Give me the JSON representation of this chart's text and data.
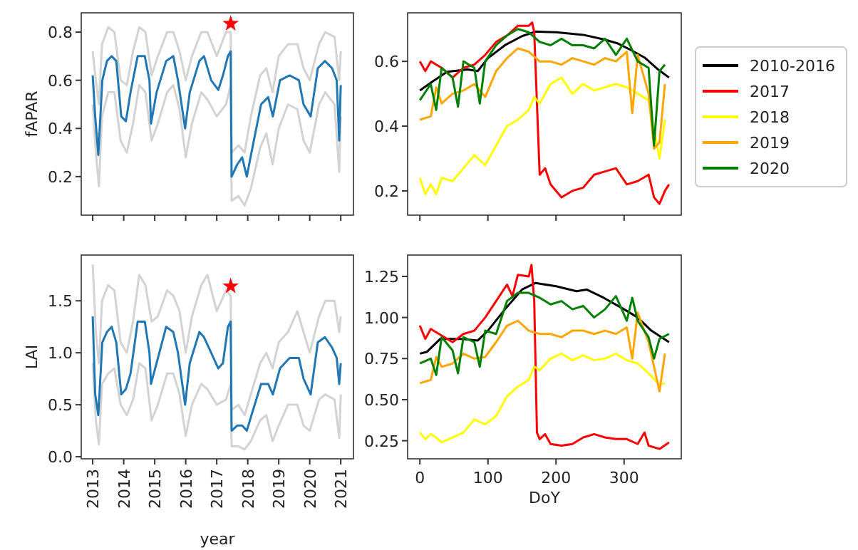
{
  "chart_data": [
    {
      "type": "line",
      "ylabel": "fAPAR",
      "xlim": [
        2012.63,
        2021.41
      ],
      "ylim": [
        0.04,
        0.88
      ],
      "xticks": [
        2013,
        2014,
        2015,
        2016,
        2017,
        2018,
        2019,
        2020,
        2021
      ],
      "yticks": [
        0.2,
        0.4,
        0.6,
        0.8
      ],
      "tick_labels": "y",
      "series": [
        {
          "color": "#d3d3d3",
          "x": [
            2013.0,
            2013.1,
            2013.2,
            2013.3,
            2013.5,
            2013.7,
            2013.9,
            2014.1,
            2014.3,
            2014.5,
            2014.7,
            2014.9,
            2015.1,
            2015.4,
            2015.6,
            2015.8,
            2016.0,
            2016.2,
            2016.5,
            2016.7,
            2017.0,
            2017.3,
            2017.45,
            2017.48,
            2017.7,
            2017.9,
            2018.1,
            2018.4,
            2018.6,
            2018.8,
            2019.0,
            2019.3,
            2019.6,
            2019.8,
            2020.0,
            2020.3,
            2020.5,
            2020.8,
            2020.95,
            2021.0
          ],
          "values": [
            0.72,
            0.6,
            0.5,
            0.75,
            0.82,
            0.8,
            0.6,
            0.58,
            0.72,
            0.82,
            0.8,
            0.62,
            0.7,
            0.8,
            0.8,
            0.72,
            0.6,
            0.7,
            0.8,
            0.8,
            0.7,
            0.8,
            0.8,
            0.3,
            0.33,
            0.3,
            0.45,
            0.62,
            0.65,
            0.55,
            0.7,
            0.75,
            0.75,
            0.65,
            0.6,
            0.75,
            0.8,
            0.78,
            0.6,
            0.72
          ]
        },
        {
          "color": "#d3d3d3",
          "x": [
            2013.0,
            2013.1,
            2013.2,
            2013.3,
            2013.5,
            2013.7,
            2013.9,
            2014.1,
            2014.3,
            2014.5,
            2014.7,
            2014.9,
            2015.1,
            2015.4,
            2015.6,
            2015.8,
            2016.0,
            2016.2,
            2016.5,
            2016.7,
            2017.0,
            2017.3,
            2017.45,
            2017.48,
            2017.7,
            2017.9,
            2018.1,
            2018.4,
            2018.6,
            2018.8,
            2019.0,
            2019.3,
            2019.6,
            2019.8,
            2020.0,
            2020.3,
            2020.5,
            2020.8,
            2020.95,
            2021.0
          ],
          "values": [
            0.5,
            0.3,
            0.16,
            0.45,
            0.55,
            0.55,
            0.35,
            0.3,
            0.42,
            0.58,
            0.55,
            0.35,
            0.42,
            0.55,
            0.58,
            0.48,
            0.28,
            0.42,
            0.55,
            0.52,
            0.45,
            0.5,
            0.58,
            0.1,
            0.12,
            0.08,
            0.15,
            0.32,
            0.38,
            0.25,
            0.4,
            0.5,
            0.48,
            0.35,
            0.3,
            0.5,
            0.55,
            0.5,
            0.22,
            0.45
          ]
        },
        {
          "color": "#1f77b4",
          "x": [
            2013.0,
            2013.08,
            2013.18,
            2013.31,
            2013.46,
            2013.61,
            2013.76,
            2013.92,
            2014.07,
            2014.22,
            2014.45,
            2014.68,
            2014.83,
            2014.88,
            2015.06,
            2015.37,
            2015.6,
            2015.75,
            2015.98,
            2016.13,
            2016.44,
            2016.59,
            2016.82,
            2017.05,
            2017.2,
            2017.36,
            2017.45,
            2017.48,
            2017.66,
            2017.82,
            2017.97,
            2018.12,
            2018.43,
            2018.66,
            2018.81,
            2019.04,
            2019.35,
            2019.65,
            2019.8,
            2020.03,
            2020.26,
            2020.49,
            2020.72,
            2020.87,
            2020.95,
            2021.0
          ],
          "values": [
            0.62,
            0.45,
            0.29,
            0.6,
            0.68,
            0.7,
            0.68,
            0.45,
            0.43,
            0.55,
            0.7,
            0.7,
            0.6,
            0.42,
            0.55,
            0.68,
            0.7,
            0.6,
            0.4,
            0.55,
            0.68,
            0.7,
            0.6,
            0.56,
            0.62,
            0.7,
            0.72,
            0.2,
            0.25,
            0.28,
            0.2,
            0.3,
            0.5,
            0.53,
            0.45,
            0.6,
            0.62,
            0.6,
            0.5,
            0.45,
            0.65,
            0.68,
            0.65,
            0.6,
            0.35,
            0.58
          ]
        },
        {
          "type": "scatter",
          "marker": "star",
          "color": "#ff0000",
          "x": [
            2017.45
          ],
          "values": [
            0.835
          ]
        }
      ]
    },
    {
      "type": "line",
      "ylabel": "LAI",
      "xlabel": "year",
      "xlim": [
        2012.63,
        2021.41
      ],
      "ylim": [
        -0.02,
        1.94
      ],
      "xticks": [
        2013,
        2014,
        2015,
        2016,
        2017,
        2018,
        2019,
        2020,
        2021
      ],
      "yticks": [
        {
          "value": 0,
          "label": "0.0"
        },
        {
          "value": 0.5,
          "label": "0.5"
        },
        {
          "value": 1,
          "label": "1.0"
        },
        {
          "value": 1.5,
          "label": "1.5"
        }
      ],
      "series": [
        {
          "color": "#d3d3d3",
          "x": [
            2013.0,
            2013.1,
            2013.2,
            2013.3,
            2013.5,
            2013.7,
            2013.9,
            2014.1,
            2014.3,
            2014.5,
            2014.7,
            2014.9,
            2015.1,
            2015.4,
            2015.6,
            2015.8,
            2016.0,
            2016.2,
            2016.5,
            2016.7,
            2017.0,
            2017.3,
            2017.45,
            2017.48,
            2017.7,
            2017.9,
            2018.1,
            2018.4,
            2018.6,
            2018.8,
            2019.0,
            2019.3,
            2019.6,
            2019.8,
            2020.0,
            2020.3,
            2020.5,
            2020.8,
            2020.95,
            2021.0
          ],
          "values": [
            1.85,
            1.2,
            0.9,
            1.5,
            1.65,
            1.6,
            1.1,
            1.0,
            1.3,
            1.75,
            1.65,
            1.3,
            1.35,
            1.6,
            1.55,
            1.4,
            1.0,
            1.35,
            1.65,
            1.75,
            1.4,
            1.6,
            1.55,
            0.45,
            0.5,
            0.4,
            0.6,
            0.9,
            1.0,
            0.85,
            1.1,
            1.2,
            1.4,
            1.2,
            1.0,
            1.35,
            1.5,
            1.5,
            1.2,
            1.35
          ]
        },
        {
          "color": "#d3d3d3",
          "x": [
            2013.0,
            2013.1,
            2013.2,
            2013.3,
            2013.5,
            2013.7,
            2013.9,
            2014.1,
            2014.3,
            2014.5,
            2014.7,
            2014.9,
            2015.1,
            2015.4,
            2015.6,
            2015.8,
            2016.0,
            2016.2,
            2016.5,
            2016.7,
            2017.0,
            2017.3,
            2017.45,
            2017.48,
            2017.7,
            2017.9,
            2018.1,
            2018.4,
            2018.6,
            2018.8,
            2019.0,
            2019.3,
            2019.6,
            2019.8,
            2020.0,
            2020.3,
            2020.5,
            2020.8,
            2020.95,
            2021.0
          ],
          "values": [
            0.9,
            0.35,
            0.12,
            0.7,
            0.8,
            0.85,
            0.5,
            0.4,
            0.55,
            0.9,
            0.85,
            0.35,
            0.5,
            0.8,
            0.8,
            0.6,
            0.2,
            0.5,
            0.7,
            0.65,
            0.5,
            0.55,
            0.7,
            0.1,
            0.1,
            0.07,
            0.15,
            0.35,
            0.4,
            0.15,
            0.3,
            0.5,
            0.5,
            0.3,
            0.25,
            0.55,
            0.6,
            0.55,
            0.18,
            0.6
          ]
        },
        {
          "color": "#1f77b4",
          "x": [
            2013.0,
            2013.08,
            2013.18,
            2013.31,
            2013.46,
            2013.61,
            2013.76,
            2013.92,
            2014.07,
            2014.22,
            2014.45,
            2014.68,
            2014.83,
            2014.88,
            2015.06,
            2015.37,
            2015.6,
            2015.75,
            2015.98,
            2016.13,
            2016.44,
            2016.59,
            2016.82,
            2017.05,
            2017.2,
            2017.36,
            2017.45,
            2017.48,
            2017.66,
            2017.82,
            2017.97,
            2018.12,
            2018.43,
            2018.66,
            2018.81,
            2019.04,
            2019.35,
            2019.65,
            2019.8,
            2020.03,
            2020.26,
            2020.49,
            2020.72,
            2020.87,
            2020.95,
            2021.0
          ],
          "values": [
            1.35,
            0.6,
            0.4,
            1.1,
            1.2,
            1.25,
            1.1,
            0.6,
            0.65,
            0.8,
            1.3,
            1.3,
            1.0,
            0.7,
            0.9,
            1.25,
            1.2,
            1.0,
            0.5,
            0.9,
            1.2,
            1.15,
            1.0,
            0.85,
            0.9,
            1.25,
            1.3,
            0.25,
            0.3,
            0.3,
            0.25,
            0.4,
            0.7,
            0.7,
            0.6,
            0.85,
            0.95,
            0.95,
            0.75,
            0.6,
            1.1,
            1.15,
            1.05,
            0.95,
            0.7,
            0.9
          ]
        },
        {
          "type": "scatter",
          "marker": "star",
          "color": "#ff0000",
          "x": [
            2017.45
          ],
          "values": [
            1.64
          ]
        }
      ]
    },
    {
      "type": "line",
      "xlim": [
        -18,
        384
      ],
      "ylim": [
        0.125,
        0.75
      ],
      "xticks": [
        0,
        100,
        200,
        300
      ],
      "yticks": [
        0.2,
        0.4,
        0.6
      ],
      "tick_labels": "y",
      "legend": "right",
      "series": [
        {
          "name": "2010-2016",
          "color": "#000000",
          "x": [
            0,
            20,
            40,
            70,
            85,
            100,
            125,
            150,
            170,
            200,
            240,
            270,
            290,
            310,
            330,
            350,
            366
          ],
          "values": [
            0.51,
            0.54,
            0.568,
            0.575,
            0.57,
            0.61,
            0.65,
            0.678,
            0.692,
            0.69,
            0.682,
            0.668,
            0.656,
            0.635,
            0.612,
            0.575,
            0.55
          ]
        },
        {
          "name": "2017",
          "color": "#ff0000",
          "x": [
            0,
            8,
            16,
            32,
            48,
            64,
            80,
            96,
            112,
            128,
            144,
            160,
            165,
            168,
            176,
            184,
            192,
            208,
            224,
            240,
            256,
            272,
            288,
            304,
            320,
            336,
            344,
            352,
            360,
            366
          ],
          "values": [
            0.6,
            0.57,
            0.6,
            0.58,
            0.55,
            0.58,
            0.59,
            0.62,
            0.66,
            0.68,
            0.71,
            0.71,
            0.72,
            0.69,
            0.25,
            0.27,
            0.22,
            0.18,
            0.2,
            0.21,
            0.25,
            0.26,
            0.27,
            0.22,
            0.23,
            0.25,
            0.18,
            0.16,
            0.2,
            0.22
          ]
        },
        {
          "name": "2018",
          "color": "#ffff00",
          "x": [
            0,
            8,
            16,
            24,
            32,
            48,
            64,
            80,
            96,
            112,
            128,
            144,
            160,
            168,
            176,
            192,
            208,
            224,
            240,
            256,
            272,
            288,
            304,
            320,
            336,
            352,
            360
          ],
          "values": [
            0.24,
            0.19,
            0.22,
            0.19,
            0.24,
            0.23,
            0.27,
            0.31,
            0.28,
            0.34,
            0.4,
            0.42,
            0.45,
            0.49,
            0.47,
            0.53,
            0.55,
            0.5,
            0.53,
            0.51,
            0.52,
            0.53,
            0.52,
            0.5,
            0.48,
            0.3,
            0.42
          ]
        },
        {
          "name": "2019",
          "color": "#ffa500",
          "x": [
            0,
            16,
            24,
            32,
            48,
            64,
            80,
            96,
            112,
            128,
            144,
            160,
            176,
            192,
            208,
            224,
            240,
            256,
            272,
            288,
            304,
            312,
            320,
            336,
            344,
            352,
            360
          ],
          "values": [
            0.42,
            0.43,
            0.52,
            0.47,
            0.5,
            0.51,
            0.53,
            0.49,
            0.57,
            0.61,
            0.64,
            0.63,
            0.6,
            0.6,
            0.59,
            0.61,
            0.6,
            0.59,
            0.61,
            0.6,
            0.63,
            0.44,
            0.62,
            0.5,
            0.33,
            0.35,
            0.53
          ]
        },
        {
          "name": "2020",
          "color": "#008000",
          "x": [
            0,
            16,
            24,
            32,
            48,
            56,
            64,
            80,
            88,
            96,
            112,
            128,
            144,
            160,
            176,
            192,
            208,
            224,
            240,
            256,
            272,
            288,
            304,
            320,
            336,
            344,
            352,
            360
          ],
          "values": [
            0.48,
            0.53,
            0.45,
            0.58,
            0.55,
            0.46,
            0.6,
            0.58,
            0.47,
            0.6,
            0.65,
            0.68,
            0.7,
            0.69,
            0.66,
            0.65,
            0.67,
            0.65,
            0.65,
            0.64,
            0.67,
            0.62,
            0.67,
            0.6,
            0.58,
            0.34,
            0.57,
            0.59
          ]
        }
      ]
    },
    {
      "type": "line",
      "xlabel": "DoY",
      "xlim": [
        -18,
        384
      ],
      "ylim": [
        0.14,
        1.38
      ],
      "xticks": [
        0,
        100,
        200,
        300
      ],
      "yticks": [
        0.25,
        {
          "value": 0.5,
          "label": "0.50"
        },
        0.75,
        {
          "value": 1,
          "label": "1.00"
        },
        1.25
      ],
      "series": [
        {
          "color": "#000000",
          "x": [
            0,
            10,
            30,
            60,
            85,
            100,
            125,
            150,
            170,
            200,
            230,
            245,
            270,
            300,
            320,
            340,
            366
          ],
          "values": [
            0.78,
            0.79,
            0.87,
            0.87,
            0.86,
            0.92,
            1.05,
            1.17,
            1.21,
            1.19,
            1.16,
            1.17,
            1.12,
            1.05,
            1.0,
            0.92,
            0.85
          ]
        },
        {
          "color": "#ff0000",
          "x": [
            0,
            8,
            16,
            32,
            48,
            64,
            80,
            96,
            112,
            128,
            136,
            144,
            160,
            164,
            168,
            172,
            176,
            184,
            192,
            208,
            224,
            240,
            256,
            272,
            288,
            304,
            320,
            330,
            336,
            344,
            352,
            366
          ],
          "values": [
            0.95,
            0.87,
            0.93,
            0.89,
            0.85,
            0.9,
            0.92,
            1.0,
            1.1,
            1.2,
            1.13,
            1.26,
            1.25,
            1.32,
            1.1,
            0.3,
            0.26,
            0.29,
            0.23,
            0.22,
            0.23,
            0.27,
            0.29,
            0.27,
            0.26,
            0.26,
            0.23,
            0.3,
            0.22,
            0.21,
            0.2,
            0.24
          ]
        },
        {
          "color": "#ffff00",
          "x": [
            0,
            8,
            16,
            24,
            32,
            48,
            64,
            80,
            96,
            112,
            128,
            144,
            160,
            168,
            176,
            192,
            208,
            224,
            240,
            256,
            272,
            288,
            304,
            320,
            336,
            352,
            360
          ],
          "values": [
            0.3,
            0.26,
            0.29,
            0.27,
            0.24,
            0.27,
            0.3,
            0.38,
            0.35,
            0.4,
            0.52,
            0.58,
            0.62,
            0.7,
            0.68,
            0.75,
            0.78,
            0.74,
            0.77,
            0.74,
            0.75,
            0.78,
            0.74,
            0.72,
            0.66,
            0.59,
            0.6
          ]
        },
        {
          "color": "#ffa500",
          "x": [
            0,
            16,
            24,
            32,
            48,
            64,
            80,
            96,
            112,
            128,
            144,
            160,
            176,
            192,
            208,
            224,
            240,
            256,
            272,
            288,
            304,
            312,
            320,
            336,
            352,
            360
          ],
          "values": [
            0.6,
            0.62,
            0.76,
            0.7,
            0.72,
            0.78,
            0.75,
            0.76,
            0.85,
            0.95,
            0.98,
            0.92,
            0.9,
            0.9,
            0.88,
            0.92,
            0.92,
            0.9,
            0.92,
            0.9,
            0.94,
            0.75,
            1.03,
            0.85,
            0.55,
            0.78
          ]
        },
        {
          "color": "#008000",
          "x": [
            0,
            16,
            24,
            32,
            48,
            56,
            64,
            80,
            88,
            96,
            112,
            128,
            144,
            160,
            176,
            192,
            208,
            224,
            240,
            256,
            272,
            288,
            304,
            312,
            320,
            336,
            344,
            352,
            366
          ],
          "values": [
            0.72,
            0.75,
            0.65,
            0.88,
            0.8,
            0.66,
            0.88,
            0.85,
            0.7,
            0.92,
            0.9,
            1.1,
            1.15,
            1.15,
            1.12,
            1.08,
            1.1,
            1.05,
            1.07,
            1.0,
            1.05,
            1.13,
            0.98,
            1.12,
            0.98,
            0.88,
            0.75,
            0.87,
            0.9
          ]
        }
      ]
    }
  ]
}
